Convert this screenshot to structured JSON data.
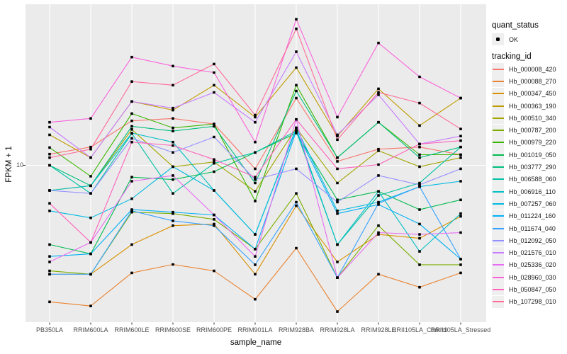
{
  "figure": {
    "background": "#FFFFFF",
    "panel_background": "#EBEBEB",
    "grid_color": "#FFFFFF",
    "tick_color": "#333333",
    "tick_label_color": "#4D4D4D"
  },
  "axes": {
    "x_title": "sample_name",
    "y_title": "FPKM + 1",
    "y_tick_labels": [
      "10"
    ]
  },
  "legend": {
    "quant_status": {
      "title": "quant_status",
      "items": [
        {
          "label": "OK",
          "symbol": "black-point"
        }
      ]
    },
    "tracking": {
      "title": "tracking_id"
    }
  },
  "chart_data": {
    "type": "line",
    "title": "",
    "xlabel": "sample_name",
    "ylabel": "FPKM + 1",
    "y_scale": "log10",
    "ylim": [
      1,
      100
    ],
    "y_breaks_labeled": [
      10
    ],
    "grid": true,
    "legend_position": "right",
    "point_shape": "small-black-square",
    "point_color": "#000000",
    "categories": [
      "PB350LA",
      "RRIM600LA",
      "RRIM600LE",
      "RRIM600SE",
      "RRIM600PE",
      "RRIM901LA",
      "RRIM928BA",
      "RRIM928LA",
      "RRIM928LE",
      "RRII105LA_Control",
      "RRII105LA_Stressed"
    ],
    "series": [
      {
        "name": "Hb_000008_420",
        "color": "#F8766D",
        "values": [
          11.8,
          13.1,
          19.3,
          20,
          18.4,
          9.5,
          27,
          10.6,
          12.7,
          13.1,
          11.7
        ]
      },
      {
        "name": "Hb_000088_270",
        "color": "#EA8331",
        "values": [
          1.33,
          1.25,
          2.04,
          2.31,
          2.1,
          1.38,
          2.94,
          1.15,
          2.0,
          1.65,
          2.04
        ]
      },
      {
        "name": "Hb_000347_450",
        "color": "#D89000",
        "values": [
          2.0,
          2.0,
          3.1,
          4.1,
          4.2,
          2.0,
          5.5,
          2.4,
          3.6,
          3.4,
          4.7
        ]
      },
      {
        "name": "Hb_000363_190",
        "color": "#C09B00",
        "values": [
          15.7,
          11.2,
          25.7,
          22.6,
          32.7,
          20.4,
          42.4,
          15.4,
          31,
          18,
          27
        ]
      },
      {
        "name": "Hb_000510_340",
        "color": "#A3A500",
        "values": [
          6.9,
          7.4,
          17,
          9.8,
          10.5,
          6.8,
          17.4,
          7.7,
          12.4,
          9.8,
          11.2
        ]
      },
      {
        "name": "Hb_000787_200",
        "color": "#7CAE00",
        "values": [
          2.1,
          2.0,
          5.0,
          4.9,
          4.5,
          2.9,
          6.6,
          1.9,
          4.1,
          2.3,
          2.3
        ]
      },
      {
        "name": "Hb_000979_220",
        "color": "#39B600",
        "values": [
          13,
          8.5,
          21.5,
          17.4,
          18.4,
          5.9,
          32.7,
          11.2,
          18.9,
          11.7,
          11.7
        ]
      },
      {
        "name": "Hb_001019_050",
        "color": "#00BB4E",
        "values": [
          3.1,
          2.7,
          8.4,
          8.1,
          9.1,
          12.1,
          16.1,
          6.0,
          6.8,
          5.2,
          6.0
        ]
      },
      {
        "name": "Hb_003777_290",
        "color": "#00BF7D",
        "values": [
          10,
          7.4,
          17.8,
          16.6,
          17.8,
          7.7,
          30,
          11.2,
          18.9,
          11.2,
          13.1
        ]
      },
      {
        "name": "Hb_006588_060",
        "color": "#00C1A3",
        "values": [
          10,
          6.6,
          16,
          6.6,
          10.3,
          12.1,
          16.6,
          3.1,
          6.4,
          7.7,
          13.1
        ]
      },
      {
        "name": "Hb_006916_110",
        "color": "#00BFC4",
        "values": [
          6.9,
          7.4,
          16.1,
          14.1,
          6.9,
          3.6,
          17.1,
          3.1,
          6.8,
          2.8,
          4.9
        ]
      },
      {
        "name": "Hb_007257_060",
        "color": "#00BAE0",
        "values": [
          5.1,
          4.6,
          6.1,
          9.8,
          6.9,
          3.6,
          17.4,
          5.1,
          5.8,
          7.3,
          7.9
        ]
      },
      {
        "name": "Hb_011224_160",
        "color": "#00B0F6",
        "values": [
          2.6,
          2.7,
          5.2,
          5.0,
          4.8,
          2.9,
          16.6,
          4.9,
          5.6,
          4.2,
          2.5
        ]
      },
      {
        "name": "Hb_011674_040",
        "color": "#35A2FF",
        "values": [
          2.0,
          2.0,
          5.1,
          4.4,
          4.1,
          2.3,
          5.8,
          1.9,
          5.7,
          7.3,
          2.5
        ]
      },
      {
        "name": "Hb_012092_050",
        "color": "#9590FF",
        "values": [
          6.9,
          6.6,
          14.9,
          12.1,
          15.2,
          8.1,
          9.5,
          5.8,
          8.6,
          7.5,
          9.5
        ]
      },
      {
        "name": "Hb_021576_010",
        "color": "#C77CFF",
        "values": [
          17.6,
          11.2,
          25.7,
          23.3,
          29.4,
          18.9,
          53.6,
          15.7,
          28.4,
          13.7,
          15.4
        ]
      },
      {
        "name": "Hb_025336_020",
        "color": "#E76BF3",
        "values": [
          2.4,
          3.2,
          7.9,
          8.6,
          4.8,
          2.6,
          19.7,
          1.9,
          3.7,
          3.6,
          3.7
        ]
      },
      {
        "name": "Hb_028960_030",
        "color": "#FA62DB",
        "values": [
          18.9,
          20,
          49.5,
          43.4,
          39.4,
          14.1,
          86.6,
          20.4,
          61,
          37,
          27
        ]
      },
      {
        "name": "Hb_050847_050",
        "color": "#FF62BC",
        "values": [
          5.7,
          3.2,
          14.1,
          13.4,
          10.9,
          8.4,
          19.7,
          9.5,
          10.1,
          13.7,
          14.4
        ]
      },
      {
        "name": "Hb_107298_010",
        "color": "#FF6A98",
        "values": [
          11.2,
          12.7,
          34.5,
          32.7,
          44.7,
          21,
          75.2,
          14.6,
          29.4,
          25.1,
          17.1
        ]
      }
    ]
  }
}
